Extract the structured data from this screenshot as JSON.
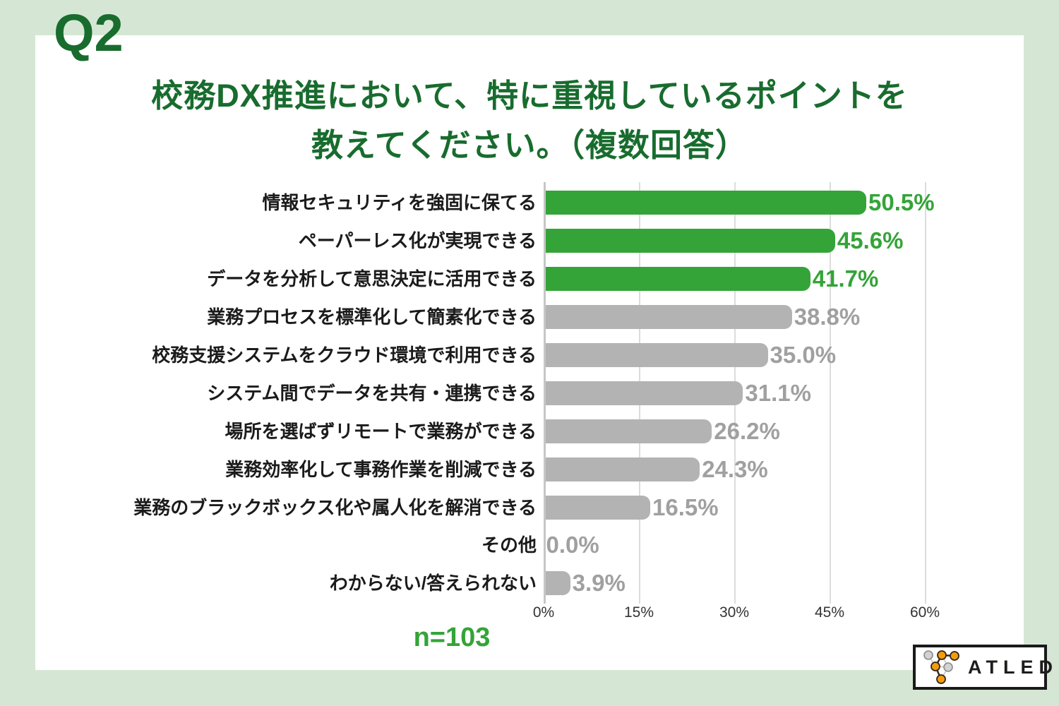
{
  "page": {
    "question_label": "Q2",
    "title_line1": "校務DX推進において、特に重視しているポイントを",
    "title_line2": "教えてください。（複数回答）",
    "sample_size": "n=103",
    "logo_text": "ATLED"
  },
  "colors": {
    "background": "#d5e7d4",
    "panel": "#ffffff",
    "title_green": "#186c2e",
    "bar_green": "#34a438",
    "bar_gray": "#b3b3b3",
    "value_text_gray": "#a0a0a0",
    "axis_gray": "#c6c6c6",
    "grid_gray": "#dcdcdc",
    "label_black": "#1b1b1b",
    "logo_orange": "#f59c0c",
    "logo_circle_gray": "#d2d2d2"
  },
  "chart_data": {
    "type": "bar",
    "orientation": "horizontal",
    "title": "校務DX推進において、特に重視しているポイントを教えてください。（複数回答）",
    "sample_size": "n=103",
    "categories": [
      "情報セキュリティを強固に保てる",
      "ペーパーレス化が実現できる",
      "データを分析して意思決定に活用できる",
      "業務プロセスを標準化して簡素化できる",
      "校務支援システムをクラウド環境で利用できる",
      "システム間でデータを共有・連携できる",
      "場所を選ばずリモートで業務ができる",
      "業務効率化して事務作業を削減できる",
      "業務のブラックボックス化や属人化を解消できる",
      "その他",
      "わからない/答えられない"
    ],
    "values": [
      50.5,
      45.6,
      41.7,
      38.8,
      35.0,
      31.1,
      26.2,
      24.3,
      16.5,
      0.0,
      3.9
    ],
    "value_labels": [
      "50.5%",
      "45.6%",
      "41.7%",
      "38.8%",
      "35.0%",
      "31.1%",
      "26.2%",
      "24.3%",
      "16.5%",
      "0.0%",
      "3.9%"
    ],
    "bar_colors": [
      "green",
      "green",
      "green",
      "gray",
      "gray",
      "gray",
      "gray",
      "gray",
      "gray",
      "gray",
      "gray"
    ],
    "x_ticks": [
      "0%",
      "15%",
      "30%",
      "45%",
      "60%"
    ],
    "x_tick_values": [
      0,
      15,
      30,
      45,
      60
    ],
    "xlim": [
      0,
      60
    ],
    "grid": true,
    "legend": null
  }
}
